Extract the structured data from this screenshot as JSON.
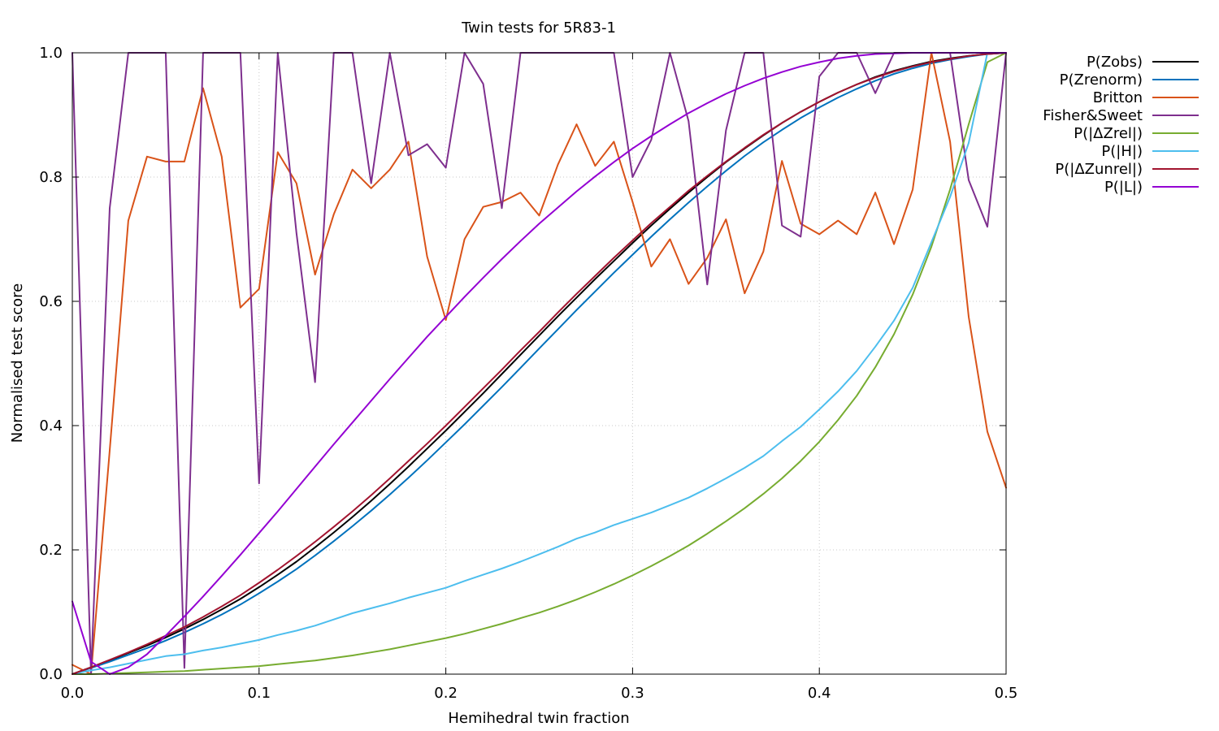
{
  "chart_data": {
    "type": "line",
    "title": "Twin tests for 5R83-1",
    "xlabel": "Hemihedral twin fraction",
    "ylabel": "Normalised test score",
    "xlim": [
      0,
      0.5
    ],
    "ylim": [
      0,
      1
    ],
    "xticks": [
      "0.0",
      "0.1",
      "0.2",
      "0.3",
      "0.4",
      "0.5"
    ],
    "yticks": [
      "0.0",
      "0.2",
      "0.4",
      "0.6",
      "0.8",
      "1.0"
    ],
    "grid": true,
    "legend_position": "outside-top-right",
    "x": [
      0.0,
      0.01,
      0.02,
      0.03,
      0.04,
      0.05,
      0.06,
      0.07,
      0.08,
      0.09,
      0.1,
      0.11,
      0.12,
      0.13,
      0.14,
      0.15,
      0.16,
      0.17,
      0.18,
      0.19,
      0.2,
      0.21,
      0.22,
      0.23,
      0.24,
      0.25,
      0.26,
      0.27,
      0.28,
      0.29,
      0.3,
      0.31,
      0.32,
      0.33,
      0.34,
      0.35,
      0.36,
      0.37,
      0.38,
      0.39,
      0.4,
      0.41,
      0.42,
      0.43,
      0.44,
      0.45,
      0.46,
      0.47,
      0.48,
      0.49,
      0.5
    ],
    "series": [
      {
        "name": "P(Zobs)",
        "color": "#000000",
        "values": [
          0.0,
          0.011,
          0.022,
          0.034,
          0.046,
          0.059,
          0.073,
          0.088,
          0.104,
          0.121,
          0.14,
          0.16,
          0.181,
          0.204,
          0.228,
          0.253,
          0.279,
          0.306,
          0.334,
          0.363,
          0.392,
          0.422,
          0.452,
          0.483,
          0.514,
          0.545,
          0.576,
          0.606,
          0.636,
          0.665,
          0.694,
          0.722,
          0.749,
          0.775,
          0.8,
          0.824,
          0.846,
          0.867,
          0.887,
          0.905,
          0.921,
          0.936,
          0.949,
          0.961,
          0.971,
          0.979,
          0.986,
          0.991,
          0.995,
          0.998,
          1.0
        ]
      },
      {
        "name": "P(Zrenorm)",
        "color": "#0072bd",
        "values": [
          0.0,
          0.01,
          0.02,
          0.031,
          0.042,
          0.054,
          0.067,
          0.081,
          0.096,
          0.112,
          0.13,
          0.149,
          0.169,
          0.191,
          0.214,
          0.238,
          0.263,
          0.289,
          0.316,
          0.344,
          0.373,
          0.402,
          0.432,
          0.462,
          0.493,
          0.524,
          0.555,
          0.586,
          0.616,
          0.646,
          0.675,
          0.704,
          0.732,
          0.759,
          0.785,
          0.81,
          0.834,
          0.856,
          0.876,
          0.895,
          0.912,
          0.928,
          0.942,
          0.955,
          0.966,
          0.975,
          0.983,
          0.989,
          0.994,
          0.998,
          1.0
        ]
      },
      {
        "name": "Britton",
        "color": "#d95319",
        "values": [
          0.015,
          0.0,
          0.36,
          0.73,
          0.833,
          0.825,
          0.825,
          0.943,
          0.833,
          0.59,
          0.62,
          0.84,
          0.79,
          0.643,
          0.74,
          0.812,
          0.782,
          0.812,
          0.857,
          0.672,
          0.57,
          0.7,
          0.752,
          0.76,
          0.775,
          0.738,
          0.82,
          0.885,
          0.818,
          0.857,
          0.76,
          0.656,
          0.7,
          0.628,
          0.67,
          0.732,
          0.613,
          0.68,
          0.826,
          0.725,
          0.708,
          0.73,
          0.708,
          0.775,
          0.692,
          0.78,
          1.0,
          0.857,
          0.575,
          0.39,
          0.3
        ]
      },
      {
        "name": "Fisher&Sweet",
        "color": "#7e2f8e",
        "values": [
          1.0,
          0.0,
          0.75,
          1.0,
          1.0,
          1.0,
          0.01,
          1.0,
          1.0,
          1.0,
          0.307,
          1.0,
          0.71,
          0.47,
          1.0,
          1.0,
          0.79,
          1.0,
          0.835,
          0.853,
          0.815,
          1.0,
          0.95,
          0.75,
          1.0,
          1.0,
          1.0,
          1.0,
          1.0,
          1.0,
          0.8,
          0.86,
          1.0,
          0.89,
          0.627,
          0.875,
          1.0,
          1.0,
          0.722,
          0.704,
          0.962,
          1.0,
          1.0,
          0.935,
          1.0,
          1.0,
          1.0,
          1.0,
          0.795,
          0.72,
          1.0
        ]
      },
      {
        "name": "P(|ΔZrel|)",
        "color": "#77ac30",
        "values": [
          0.0,
          0.0,
          0.001,
          0.002,
          0.003,
          0.004,
          0.005,
          0.007,
          0.009,
          0.011,
          0.013,
          0.016,
          0.019,
          0.022,
          0.026,
          0.03,
          0.035,
          0.04,
          0.046,
          0.052,
          0.058,
          0.065,
          0.073,
          0.081,
          0.09,
          0.099,
          0.109,
          0.12,
          0.132,
          0.145,
          0.159,
          0.174,
          0.19,
          0.207,
          0.226,
          0.246,
          0.267,
          0.29,
          0.315,
          0.343,
          0.374,
          0.409,
          0.448,
          0.494,
          0.547,
          0.611,
          0.688,
          0.78,
          0.885,
          0.985,
          1.0
        ]
      },
      {
        "name": "P(|H|)",
        "color": "#4dbeee",
        "values": [
          0.0,
          0.006,
          0.011,
          0.017,
          0.023,
          0.029,
          0.032,
          0.038,
          0.043,
          0.049,
          0.055,
          0.063,
          0.07,
          0.078,
          0.088,
          0.098,
          0.106,
          0.114,
          0.123,
          0.131,
          0.139,
          0.15,
          0.16,
          0.17,
          0.181,
          0.193,
          0.205,
          0.218,
          0.228,
          0.24,
          0.25,
          0.26,
          0.272,
          0.284,
          0.299,
          0.315,
          0.332,
          0.351,
          0.375,
          0.398,
          0.426,
          0.455,
          0.488,
          0.527,
          0.569,
          0.622,
          0.695,
          0.768,
          0.855,
          1.0,
          1.0
        ]
      },
      {
        "name": "P(|ΔZunrel|)",
        "color": "#a2142f",
        "values": [
          0.0,
          0.011,
          0.023,
          0.035,
          0.048,
          0.062,
          0.076,
          0.092,
          0.109,
          0.127,
          0.147,
          0.168,
          0.19,
          0.213,
          0.237,
          0.262,
          0.288,
          0.315,
          0.343,
          0.371,
          0.4,
          0.43,
          0.46,
          0.49,
          0.521,
          0.551,
          0.582,
          0.612,
          0.641,
          0.67,
          0.698,
          0.726,
          0.752,
          0.778,
          0.802,
          0.825,
          0.847,
          0.868,
          0.887,
          0.905,
          0.921,
          0.936,
          0.949,
          0.96,
          0.97,
          0.978,
          0.985,
          0.99,
          0.995,
          0.998,
          1.0
        ]
      },
      {
        "name": "P(|L|)",
        "color": "#9400d3",
        "values": [
          0.117,
          0.02,
          0.0,
          0.011,
          0.032,
          0.062,
          0.093,
          0.125,
          0.158,
          0.192,
          0.227,
          0.262,
          0.298,
          0.334,
          0.37,
          0.405,
          0.44,
          0.475,
          0.509,
          0.543,
          0.575,
          0.607,
          0.638,
          0.668,
          0.697,
          0.725,
          0.751,
          0.777,
          0.801,
          0.824,
          0.846,
          0.866,
          0.885,
          0.903,
          0.919,
          0.934,
          0.947,
          0.959,
          0.969,
          0.978,
          0.985,
          0.991,
          0.995,
          0.998,
          0.999,
          1.0,
          1.0,
          1.0,
          1.0,
          1.0,
          1.0
        ]
      }
    ]
  }
}
